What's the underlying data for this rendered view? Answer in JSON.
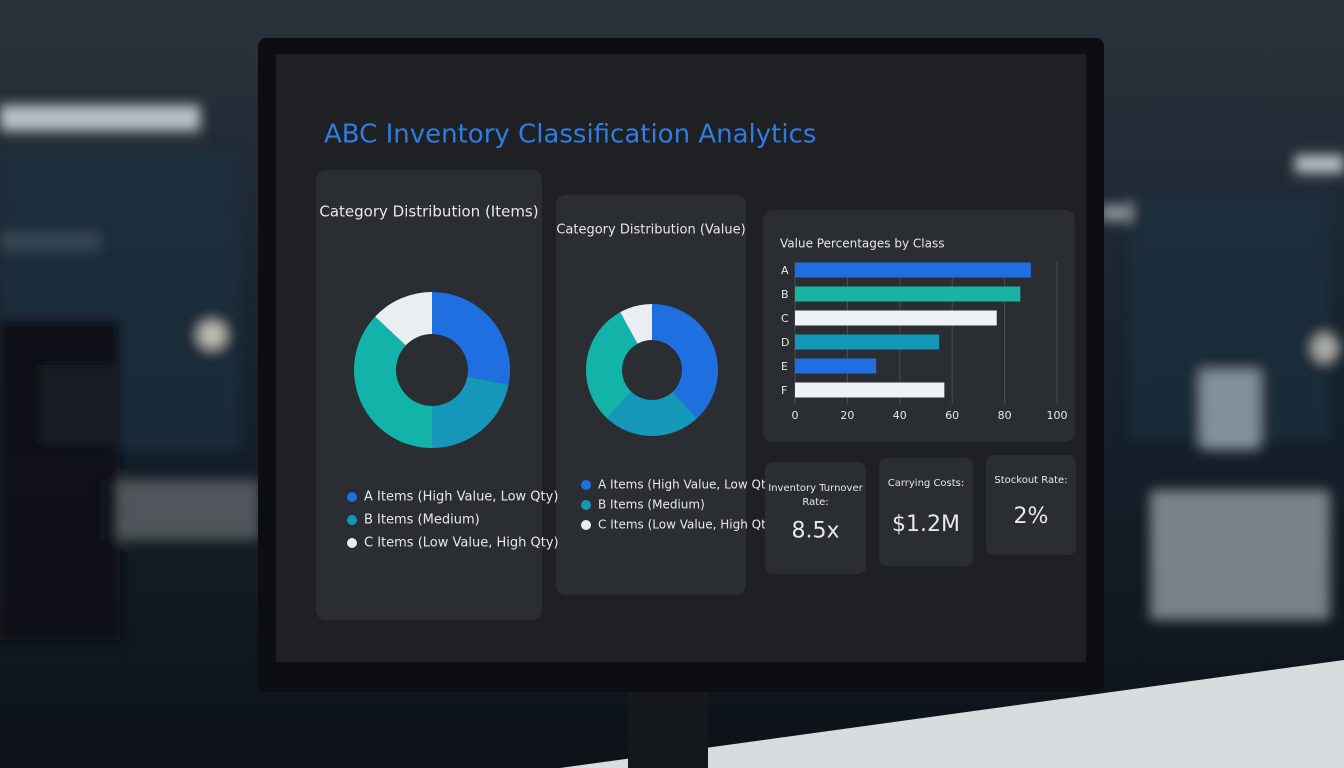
{
  "title": "ABC Inventory Classification Analytics",
  "chart_data": [
    {
      "type": "donut",
      "title": "Category Distribution (Items)",
      "categories": [
        "A Items (High Value, Low Qty)",
        "B Items (Medium)",
        null,
        "C Items (Low Value, High Qty)"
      ],
      "values": [
        28,
        22,
        37,
        13
      ],
      "colors": [
        "#1f6fe0",
        "#1497b8",
        "#12b3a8",
        "#e8eef2"
      ]
    },
    {
      "type": "donut",
      "title": "Category Distribution (Value)",
      "categories": [
        "A Items (High Value, Low Qty)",
        "B Items (Medium)",
        null,
        "C Items (Low Value, High Qty)"
      ],
      "values": [
        38,
        24,
        30,
        8
      ],
      "colors": [
        "#1f6fe0",
        "#1497b8",
        "#12b3a8",
        "#e8eef2"
      ]
    },
    {
      "type": "bar",
      "orientation": "horizontal",
      "title": "Value Percentages by Class",
      "categories": [
        "A",
        "B",
        "C",
        "D",
        "E",
        "F"
      ],
      "values": [
        90,
        86,
        77,
        55,
        31,
        57
      ],
      "colors": [
        "#1f6fe0",
        "#18b3a3",
        "#eef2f5",
        "#1497b8",
        "#1f6fe0",
        "#eef2f5"
      ],
      "xlim": [
        0,
        100
      ],
      "xticks": [
        0,
        20,
        40,
        60,
        80,
        100
      ],
      "grid": true
    }
  ],
  "kpis": [
    {
      "label": "Inventory Turnover Rate:",
      "value": "8.5x"
    },
    {
      "label": "Carrying Costs:",
      "value": "$1.2M"
    },
    {
      "label": "Stockout Rate:",
      "value": "2%"
    }
  ]
}
